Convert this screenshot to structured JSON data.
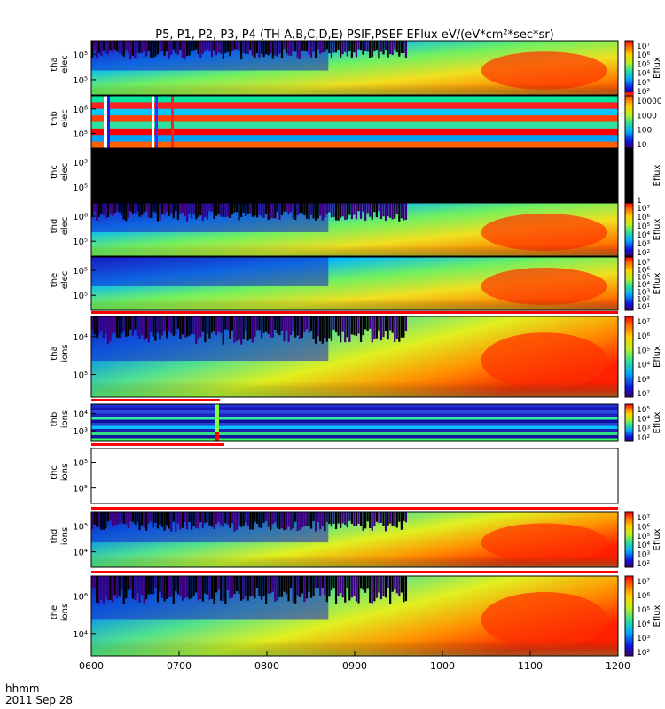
{
  "chart_data": {
    "type": "heatmap",
    "title": "P5, P1, P2, P3, P4 (TH-A,B,C,D,E) PSIF,PSEF EFlux eV/(eV*cm²*sec*sr)",
    "x_label_line1": "hhmm",
    "x_label_line2": "2011 Sep 28",
    "x_range": [
      "0600",
      "1200"
    ],
    "x_ticks": [
      "0600",
      "0700",
      "0800",
      "0900",
      "1000",
      "1100",
      "1200"
    ],
    "colorbar_label": "Eflux",
    "panels": [
      {
        "probe": "tha",
        "species": "elec",
        "y_ticks": [
          "10⁵",
          "10⁵"
        ],
        "colorbar_ticks": [
          "10⁷",
          "10⁶",
          "10⁵",
          "10⁴",
          "10³",
          "10²"
        ],
        "has_colorbar_label": true,
        "pattern": "elec",
        "black_top": true
      },
      {
        "probe": "thb",
        "species": "elec",
        "y_ticks": [
          "10⁶",
          "10⁵"
        ],
        "colorbar_ticks": [
          "10000",
          "1000",
          "100",
          "10"
        ],
        "has_colorbar_label": false,
        "pattern": "stripes"
      },
      {
        "probe": "thc",
        "species": "elec",
        "y_ticks": [
          "10⁵",
          "10⁵"
        ],
        "colorbar_ticks": [
          "1"
        ],
        "has_colorbar_label": true,
        "pattern": "black"
      },
      {
        "probe": "thd",
        "species": "elec",
        "y_ticks": [
          "10⁶",
          "10⁵"
        ],
        "colorbar_ticks": [
          "10⁷",
          "10⁶",
          "10⁵",
          "10⁴",
          "10³",
          "10²"
        ],
        "has_colorbar_label": true,
        "pattern": "elec",
        "black_top": true
      },
      {
        "probe": "the",
        "species": "elec",
        "y_ticks": [
          "10⁵",
          "10⁵"
        ],
        "colorbar_ticks": [
          "10⁷",
          "10⁶",
          "10⁵",
          "10⁴",
          "10³",
          "10²",
          "10¹"
        ],
        "has_colorbar_label": true,
        "pattern": "elec",
        "black_top": false
      },
      {
        "probe": "tha",
        "species": "ions",
        "y_ticks": [
          "10⁴",
          "10⁵"
        ],
        "colorbar_ticks": [
          "10⁷",
          "10⁶",
          "10⁵",
          "10⁴",
          "10³",
          "10²"
        ],
        "has_colorbar_label": true,
        "pattern": "ions",
        "black_top": true,
        "top_bar": "full"
      },
      {
        "probe": "thb",
        "species": "ions",
        "y_ticks": [
          "10⁴",
          "10³"
        ],
        "colorbar_ticks": [
          "10⁵",
          "10⁴",
          "10³",
          "10²"
        ],
        "has_colorbar_label": true,
        "pattern": "bands",
        "top_bar": "partial"
      },
      {
        "probe": "thc",
        "species": "ions",
        "y_ticks": [
          "10⁵",
          "10⁵"
        ],
        "colorbar_ticks": [],
        "has_colorbar_label": false,
        "pattern": "empty"
      },
      {
        "probe": "thd",
        "species": "ions",
        "y_ticks": [
          "10⁵",
          "10⁴"
        ],
        "colorbar_ticks": [
          "10⁷",
          "10⁶",
          "10⁵",
          "10⁴",
          "10³",
          "10²"
        ],
        "has_colorbar_label": true,
        "pattern": "ions",
        "black_top": true,
        "top_bar": "full"
      },
      {
        "probe": "the",
        "species": "ions",
        "y_ticks": [
          "10⁶",
          "10⁴"
        ],
        "colorbar_ticks": [
          "10⁷",
          "10⁶",
          "10⁵",
          "10⁴",
          "10³",
          "10²"
        ],
        "has_colorbar_label": true,
        "pattern": "ions",
        "black_top": true,
        "top_bar": "full"
      }
    ]
  }
}
